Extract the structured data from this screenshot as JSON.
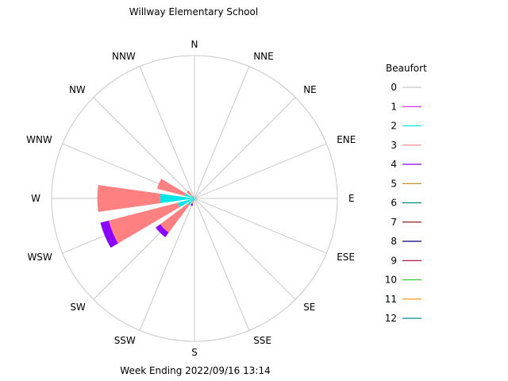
{
  "chart_data": {
    "type": "wind-rose",
    "title": "Willway Elementary School",
    "subtitle": "Week Ending 2022/09/16 13:14",
    "directions": [
      "N",
      "NNE",
      "NE",
      "ENE",
      "E",
      "ESE",
      "SE",
      "SSE",
      "S",
      "SSW",
      "SW",
      "WSW",
      "W",
      "WNW",
      "NW",
      "NNW"
    ],
    "legend": {
      "title": "Beaufort",
      "placement": "right",
      "entries": [
        {
          "label": "0",
          "color": "#c8c8c8"
        },
        {
          "label": "1",
          "color": "#d81bd8"
        },
        {
          "label": "2",
          "color": "#00e5e5"
        },
        {
          "label": "3",
          "color": "#ff8080"
        },
        {
          "label": "4",
          "color": "#8b00ff"
        },
        {
          "label": "5",
          "color": "#b8860b"
        },
        {
          "label": "6",
          "color": "#008b8b"
        },
        {
          "label": "7",
          "color": "#8b0000"
        },
        {
          "label": "8",
          "color": "#000080"
        },
        {
          "label": "9",
          "color": "#a0002a"
        },
        {
          "label": "10",
          "color": "#32cd32"
        },
        {
          "label": "11",
          "color": "#ff8c00"
        },
        {
          "label": "12",
          "color": "#008b8b"
        }
      ]
    },
    "rmax": 100,
    "wedges": [
      {
        "dir": "N",
        "segments": [
          0,
          0,
          0.5,
          0,
          0
        ]
      },
      {
        "dir": "NNE",
        "segments": [
          0,
          0,
          0,
          0,
          0
        ]
      },
      {
        "dir": "NE",
        "segments": [
          0,
          0,
          0,
          0,
          0
        ]
      },
      {
        "dir": "ENE",
        "segments": [
          0,
          0,
          0,
          0,
          0
        ]
      },
      {
        "dir": "E",
        "segments": [
          0,
          0,
          1,
          0,
          0
        ]
      },
      {
        "dir": "ESE",
        "segments": [
          0,
          0,
          0,
          0,
          0
        ]
      },
      {
        "dir": "SE",
        "segments": [
          0,
          0,
          0,
          0,
          0
        ]
      },
      {
        "dir": "SSE",
        "segments": [
          0,
          0,
          0,
          0,
          0
        ]
      },
      {
        "dir": "S",
        "segments": [
          0,
          0,
          1,
          0,
          0
        ]
      },
      {
        "dir": "SSW",
        "segments": [
          0,
          0,
          2,
          2,
          1.5
        ]
      },
      {
        "dir": "SW",
        "segments": [
          0,
          0,
          6,
          24,
          4
        ]
      },
      {
        "dir": "WSW",
        "segments": [
          0,
          0,
          12,
          50,
          6
        ]
      },
      {
        "dir": "W",
        "segments": [
          0,
          0,
          24,
          44,
          0
        ]
      },
      {
        "dir": "WNW",
        "segments": [
          0,
          0,
          7,
          20,
          0
        ]
      },
      {
        "dir": "NW",
        "segments": [
          0,
          0,
          2,
          5,
          0
        ]
      },
      {
        "dir": "NNW",
        "segments": [
          0,
          0,
          0,
          0,
          0
        ]
      }
    ]
  }
}
